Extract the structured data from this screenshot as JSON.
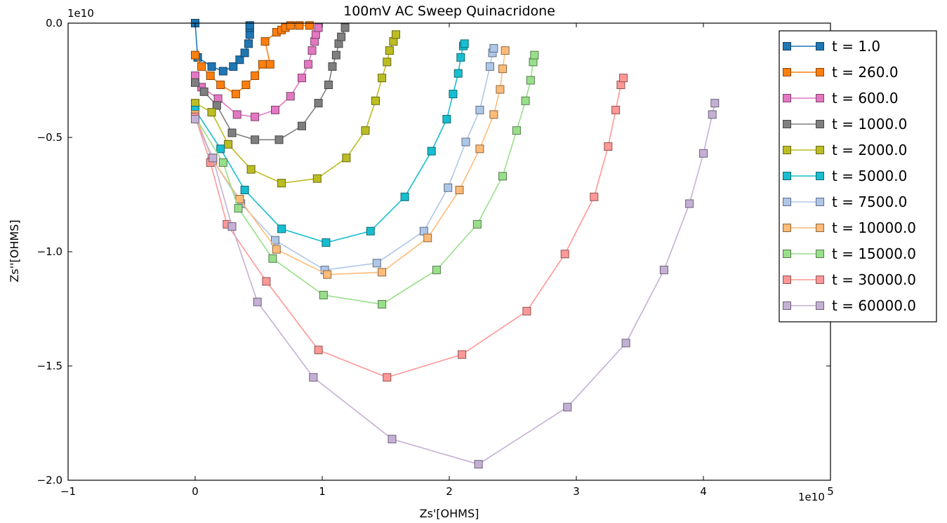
{
  "chart_data": {
    "type": "scatter",
    "title": "100mV AC Sweep Quinacridone",
    "xlabel": "Zs'[OHMS]",
    "ylabel": "Zs''[OHMS]",
    "x_offset_label": "1e10",
    "y_offset_label": "1e10",
    "xlim": [
      -1,
      5
    ],
    "ylim": [
      -2.0,
      0.0
    ],
    "xticks": [
      -1,
      0,
      1,
      2,
      3,
      4,
      5
    ],
    "xtick_labels": [
      "−1",
      "0",
      "1",
      "2",
      "3",
      "4",
      "5"
    ],
    "yticks": [
      0.0,
      -0.5,
      -1.0,
      -1.5,
      -2.0
    ],
    "ytick_labels": [
      "0.0",
      "−0.5",
      "−1.0",
      "−1.5",
      "−2.0"
    ],
    "grid": false,
    "legend_position": "top-right",
    "series": [
      {
        "name": "t = 1.0",
        "color": "#1f77b4",
        "x": [
          0.0,
          0.02,
          0.13,
          0.22,
          0.3,
          0.35,
          0.39,
          0.42,
          0.43,
          0.43,
          0.43
        ],
        "y": [
          -0.0,
          -0.15,
          -0.19,
          -0.21,
          -0.19,
          -0.16,
          -0.13,
          -0.09,
          -0.05,
          -0.02,
          -0.01
        ]
      },
      {
        "name": "t = 260.0",
        "color": "#ff7f0e",
        "x": [
          0.0,
          0.05,
          0.12,
          0.2,
          0.32,
          0.4,
          0.47,
          0.53,
          0.59,
          0.55,
          0.64,
          0.68,
          0.71,
          0.75,
          0.82,
          0.9
        ],
        "y": [
          -0.14,
          -0.19,
          -0.23,
          -0.27,
          -0.31,
          -0.27,
          -0.23,
          -0.18,
          -0.18,
          -0.08,
          -0.04,
          -0.03,
          -0.02,
          -0.01,
          -0.01,
          -0.01
        ]
      },
      {
        "name": "t = 600.0",
        "color": "#e377c2",
        "x": [
          0.0,
          0.05,
          0.18,
          0.33,
          0.47,
          0.63,
          0.75,
          0.84,
          0.89,
          0.92,
          0.94,
          0.95,
          0.97
        ],
        "y": [
          -0.23,
          -0.28,
          -0.33,
          -0.4,
          -0.41,
          -0.38,
          -0.32,
          -0.24,
          -0.18,
          -0.12,
          -0.08,
          -0.05,
          -0.02
        ]
      },
      {
        "name": "t = 1000.0",
        "color": "#7f7f7f",
        "x": [
          0.0,
          0.07,
          0.17,
          0.29,
          0.47,
          0.66,
          0.84,
          0.97,
          1.05,
          1.08,
          1.11,
          1.13,
          1.15,
          1.18
        ],
        "y": [
          -0.26,
          -0.3,
          -0.36,
          -0.48,
          -0.51,
          -0.51,
          -0.45,
          -0.35,
          -0.27,
          -0.19,
          -0.14,
          -0.09,
          -0.06,
          -0.02
        ]
      },
      {
        "name": "t = 2000.0",
        "color": "#bcbd22",
        "x": [
          0.0,
          0.13,
          0.26,
          0.44,
          0.68,
          0.96,
          1.19,
          1.34,
          1.42,
          1.47,
          1.51,
          1.53,
          1.56,
          1.58
        ],
        "y": [
          -0.35,
          -0.39,
          -0.53,
          -0.64,
          -0.7,
          -0.68,
          -0.59,
          -0.47,
          -0.34,
          -0.24,
          -0.17,
          -0.12,
          -0.08,
          -0.05
        ]
      },
      {
        "name": "t = 5000.0",
        "color": "#17becf",
        "x": [
          0.0,
          0.2,
          0.39,
          0.68,
          1.03,
          1.38,
          1.65,
          1.86,
          1.98,
          2.03,
          2.07,
          2.09,
          2.11,
          2.12
        ],
        "y": [
          -0.38,
          -0.55,
          -0.73,
          -0.9,
          -0.96,
          -0.91,
          -0.76,
          -0.56,
          -0.42,
          -0.31,
          -0.22,
          -0.15,
          -0.1,
          -0.09
        ]
      },
      {
        "name": "t = 7500.0",
        "color": "#aec7e8",
        "x": [
          0.0,
          0.13,
          0.36,
          0.63,
          1.02,
          1.43,
          1.8,
          1.99,
          2.13,
          2.24,
          2.32,
          2.34,
          2.35
        ],
        "y": [
          -0.41,
          -0.59,
          -0.79,
          -0.95,
          -1.08,
          -1.05,
          -0.91,
          -0.72,
          -0.52,
          -0.38,
          -0.19,
          -0.13,
          -0.11
        ]
      },
      {
        "name": "t = 10000.0",
        "color": "#ffbb78",
        "x": [
          0.0,
          0.14,
          0.35,
          0.64,
          1.04,
          1.47,
          1.83,
          2.08,
          2.24,
          2.35,
          2.4,
          2.42,
          2.44
        ],
        "y": [
          -0.4,
          -0.6,
          -0.77,
          -0.99,
          -1.1,
          -1.09,
          -0.94,
          -0.73,
          -0.55,
          -0.4,
          -0.29,
          -0.2,
          -0.12
        ]
      },
      {
        "name": "t = 15000.0",
        "color": "#98df8a",
        "x": [
          0.0,
          0.22,
          0.34,
          0.61,
          1.01,
          1.47,
          1.9,
          2.22,
          2.42,
          2.53,
          2.6,
          2.64,
          2.66,
          2.67
        ],
        "y": [
          -0.41,
          -0.61,
          -0.81,
          -1.03,
          -1.19,
          -1.23,
          -1.08,
          -0.88,
          -0.67,
          -0.47,
          -0.34,
          -0.25,
          -0.17,
          -0.14
        ]
      },
      {
        "name": "t = 30000.0",
        "color": "#ff9896",
        "x": [
          0.0,
          0.12,
          0.25,
          0.56,
          0.97,
          1.51,
          2.1,
          2.61,
          2.91,
          3.14,
          3.25,
          3.31,
          3.35,
          3.37
        ],
        "y": [
          -0.41,
          -0.61,
          -0.88,
          -1.13,
          -1.43,
          -1.55,
          -1.45,
          -1.26,
          -1.01,
          -0.76,
          -0.54,
          -0.38,
          -0.27,
          -0.24
        ]
      },
      {
        "name": "t = 60000.0",
        "color": "#c5b0d5",
        "x": [
          0.0,
          0.14,
          0.29,
          0.49,
          0.93,
          1.55,
          2.23,
          2.93,
          3.39,
          3.69,
          3.89,
          4.0,
          4.07,
          4.09
        ],
        "y": [
          -0.42,
          -0.59,
          -0.89,
          -1.22,
          -1.55,
          -1.82,
          -1.93,
          -1.68,
          -1.4,
          -1.08,
          -0.79,
          -0.57,
          -0.4,
          -0.35
        ]
      }
    ]
  }
}
